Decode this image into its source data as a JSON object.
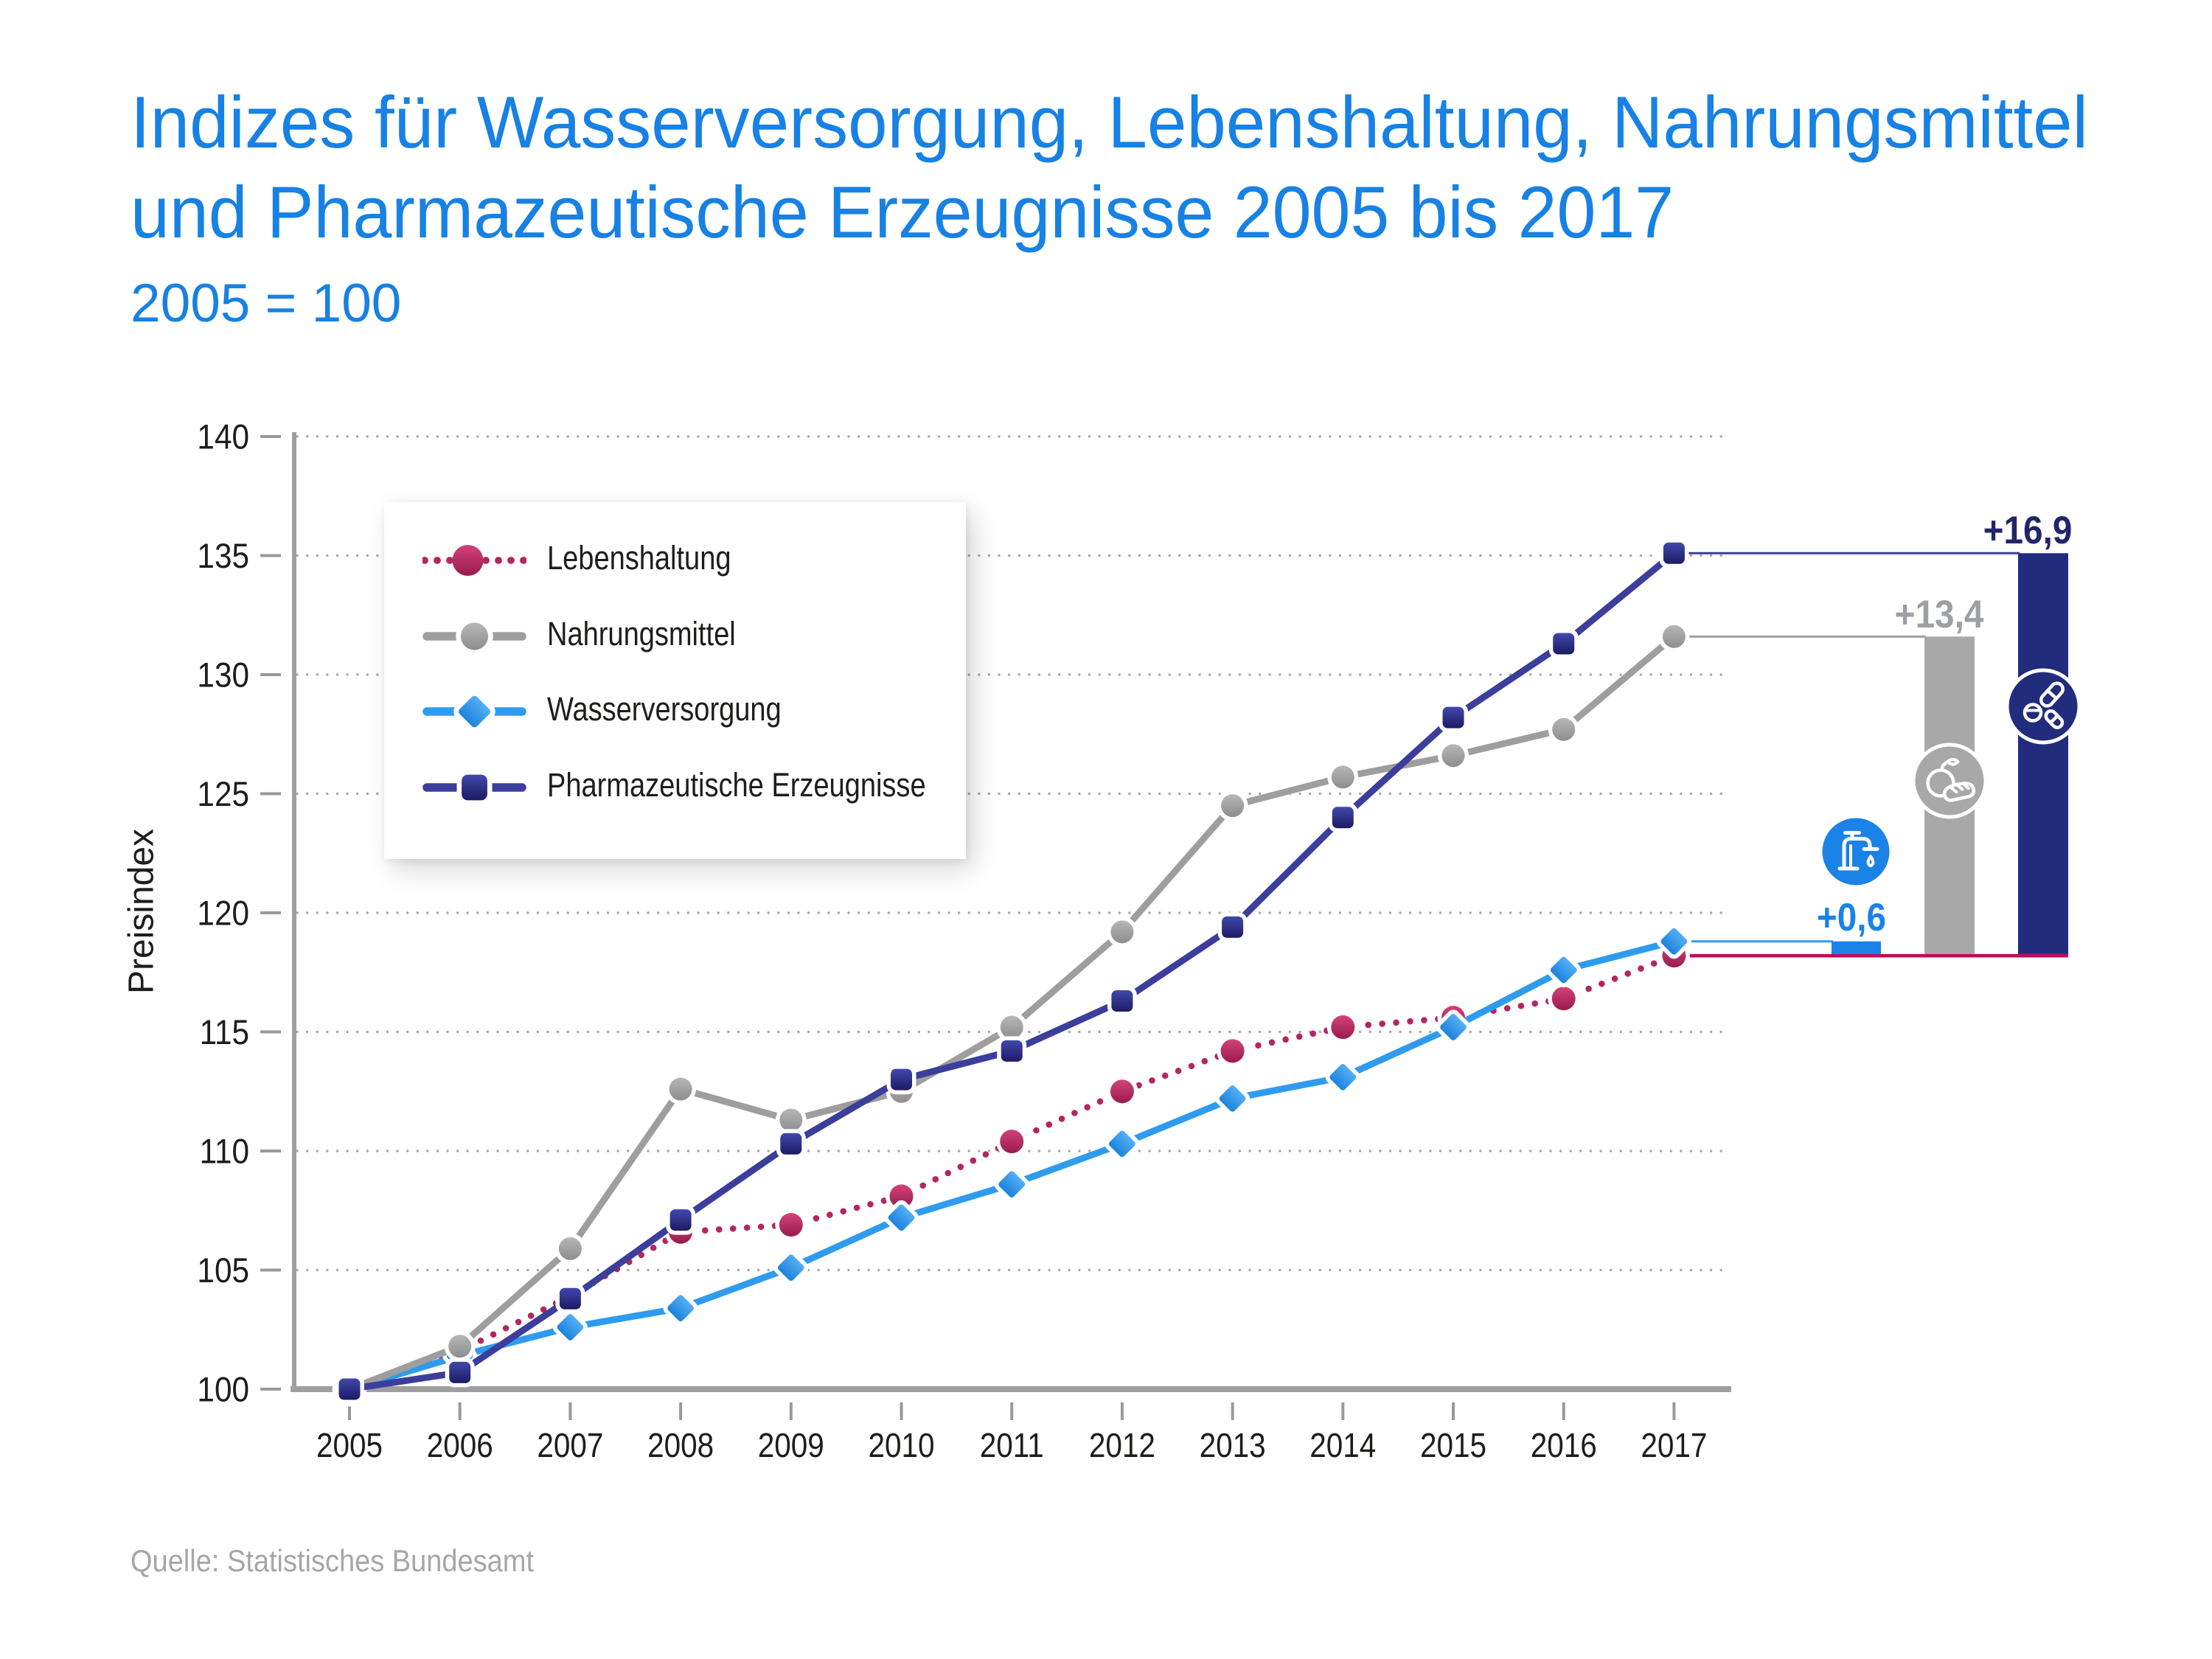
{
  "header": {
    "title_line1": "Indizes für Wasserversorgung, Lebenshaltung, Nahrungsmittel",
    "title_line2": "und Pharmazeutische Erzeugnisse 2005 bis 2017",
    "subtitle": "2005 = 100",
    "title_color": "#1781E4"
  },
  "footer": {
    "source": "Quelle: Statistisches Bundesamt"
  },
  "chart_data": {
    "type": "line",
    "title": "Indizes für Wasserversorgung, Lebenshaltung, Nahrungsmittel und Pharmazeutische Erzeugnisse 2005 bis 2017",
    "subtitle": "2005 = 100",
    "xlabel": "",
    "ylabel": "Preisindex",
    "ylim": [
      100,
      140
    ],
    "y_ticks": [
      100,
      105,
      110,
      115,
      120,
      125,
      130,
      135,
      140
    ],
    "grid": "dotted horizontal gridlines",
    "legend_position": "upper left inside plot",
    "categories": [
      2005,
      2006,
      2007,
      2008,
      2009,
      2010,
      2011,
      2012,
      2013,
      2014,
      2015,
      2016,
      2017
    ],
    "series": [
      {
        "name": "Lebenshaltung",
        "color": "#B52561",
        "marker": "circle",
        "line_style": "dotted",
        "values": [
          100,
          101.6,
          103.9,
          106.6,
          106.9,
          108.1,
          110.4,
          112.5,
          114.2,
          115.2,
          115.6,
          116.4,
          118.2
        ]
      },
      {
        "name": "Nahrungsmittel",
        "color": "#9E9E9E",
        "marker": "circle",
        "line_style": "solid",
        "values": [
          100,
          101.8,
          105.9,
          112.6,
          111.3,
          112.5,
          115.2,
          119.2,
          124.5,
          125.7,
          126.6,
          127.7,
          131.6
        ]
      },
      {
        "name": "Wasserversorgung",
        "color": "#2F9BEE",
        "marker": "diamond",
        "line_style": "solid",
        "values": [
          100,
          101.4,
          102.6,
          103.4,
          105.1,
          107.2,
          108.6,
          110.3,
          112.2,
          113.1,
          115.2,
          117.6,
          118.8
        ]
      },
      {
        "name": "Pharmazeutische Erzeugnisse",
        "color": "#3B3E9B",
        "marker": "square",
        "line_style": "solid",
        "values": [
          100,
          100.7,
          103.8,
          107.1,
          110.3,
          113.0,
          114.2,
          116.3,
          119.4,
          124.0,
          128.2,
          131.3,
          135.1
        ]
      }
    ],
    "annotations": {
      "comparison_baseline": {
        "series": "Lebenshaltung",
        "year": 2017,
        "value": 118.2,
        "color": "#C10C58"
      },
      "bars": [
        {
          "series": "Wasserversorgung",
          "label": "+0,6",
          "value": 118.8,
          "color": "#1B82E8",
          "label_color": "#1B82E8",
          "icon": "faucet"
        },
        {
          "series": "Nahrungsmittel",
          "label": "+13,4",
          "value": 131.6,
          "color": "#A8A8A8",
          "label_color": "#9DA0A3",
          "icon": "apple-bread"
        },
        {
          "series": "Pharmazeutische Erzeugnisse",
          "label": "+16,9",
          "value": 135.1,
          "color": "#222C7D",
          "label_color": "#202669",
          "icon": "pills"
        }
      ]
    }
  }
}
